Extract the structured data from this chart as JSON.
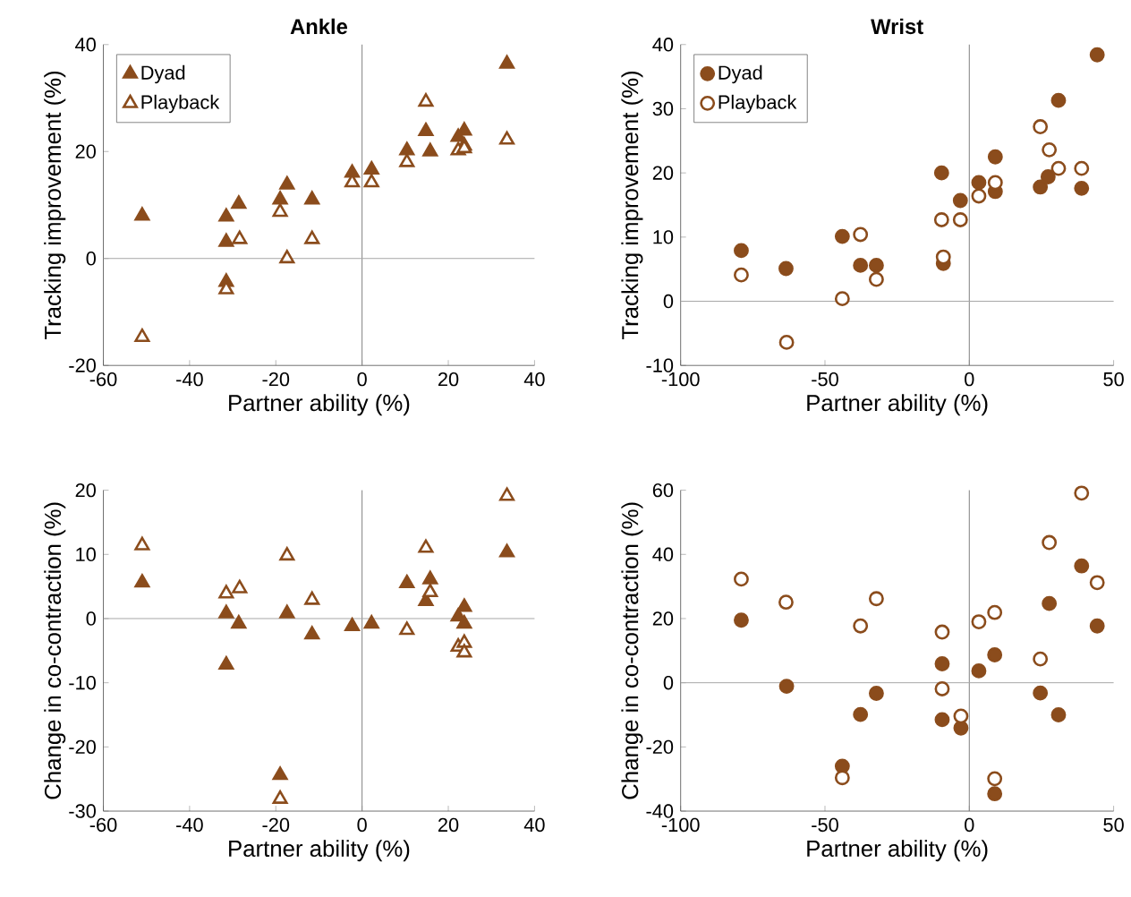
{
  "chart_data": [
    {
      "type": "scatter",
      "title": "Ankle",
      "xlabel": "Partner ability (%)",
      "ylabel": "Tracking improvement (%)",
      "xlim": [
        -60,
        40
      ],
      "ylim": [
        -20,
        40
      ],
      "xticks": [
        -60,
        -40,
        -20,
        0,
        20,
        40
      ],
      "yticks": [
        -20,
        0,
        20,
        40
      ],
      "legend": "top left",
      "marker": "triangle",
      "ref_lines": [
        {
          "axis": "x",
          "value": 0,
          "color": "#808080"
        },
        {
          "axis": "y",
          "value": 0,
          "color": "#a6a6a6"
        }
      ],
      "series": [
        {
          "name": "Dyad",
          "color": "#8b4c1c",
          "x": [
            -51,
            -31.5,
            -28.6,
            -31.5,
            -31.5,
            -19,
            -17.4,
            -11.6,
            -2.3,
            2.2,
            10.4,
            14.8,
            15.8,
            22.3,
            23.7,
            23.7,
            33.6
          ],
          "values": [
            8,
            7.8,
            10.2,
            3.1,
            -4.4,
            11,
            13.8,
            11,
            16,
            16.6,
            20.2,
            23.8,
            20,
            22.7,
            23.9,
            21.1,
            36.4
          ]
        },
        {
          "name": "Playback",
          "color": "#8b4c1c",
          "x": [
            -51,
            -31.5,
            -28.4,
            -19,
            -17.4,
            -11.6,
            -2.3,
            2.2,
            10.4,
            14.8,
            22.3,
            23.7,
            33.6
          ],
          "values": [
            -14.7,
            -5.8,
            3.6,
            8.7,
            0,
            3.6,
            14.2,
            14.2,
            18,
            29.3,
            20.2,
            20.6,
            22.2
          ]
        }
      ]
    },
    {
      "type": "scatter",
      "title": "Wrist",
      "xlabel": "Partner ability (%)",
      "ylabel": "Tracking improvement (%)",
      "xlim": [
        -100,
        50
      ],
      "ylim": [
        -10,
        40
      ],
      "xticks": [
        -100,
        -50,
        0,
        50
      ],
      "yticks": [
        -10,
        0,
        10,
        20,
        30,
        40
      ],
      "legend": "top left",
      "marker": "circle",
      "ref_lines": [
        {
          "axis": "x",
          "value": 0,
          "color": "#808080"
        },
        {
          "axis": "y",
          "value": 0,
          "color": "#a6a6a6"
        }
      ],
      "series": [
        {
          "name": "Dyad",
          "color": "#8b4c1c",
          "x": [
            -79,
            -63.5,
            -44,
            -37.7,
            -32.2,
            -9.6,
            -9,
            -3.1,
            3.3,
            9,
            9,
            24.6,
            27.3,
            30.9,
            38.9,
            44.3
          ],
          "values": [
            7.9,
            5.1,
            10.1,
            5.6,
            5.6,
            20,
            5.9,
            15.7,
            18.5,
            22.5,
            17.1,
            17.8,
            19.4,
            31.3,
            17.6,
            38.4
          ]
        },
        {
          "name": "Playback",
          "color": "#8b4c1c",
          "x": [
            -79,
            -63.3,
            -44,
            -37.7,
            -32.2,
            -9.6,
            -9,
            -3.1,
            3.3,
            9,
            24.6,
            27.7,
            30.9,
            38.9
          ],
          "values": [
            4.1,
            -6.4,
            0.4,
            10.4,
            3.4,
            12.7,
            6.9,
            12.7,
            16.4,
            18.5,
            27.2,
            23.6,
            20.7,
            20.7
          ]
        }
      ]
    },
    {
      "type": "scatter",
      "xlabel": "Partner ability (%)",
      "ylabel": "Change in co-contraction (%)",
      "xlim": [
        -60,
        40
      ],
      "ylim": [
        -30,
        20
      ],
      "xticks": [
        -60,
        -40,
        -20,
        0,
        20,
        40
      ],
      "yticks": [
        -30,
        -20,
        -10,
        0,
        10,
        20
      ],
      "marker": "triangle",
      "ref_lines": [
        {
          "axis": "x",
          "value": 0,
          "color": "#808080"
        },
        {
          "axis": "y",
          "value": 0,
          "color": "#a6a6a6"
        }
      ],
      "series": [
        {
          "color": "#8b4c1c",
          "x": [
            -51,
            -31.5,
            -31.5,
            -28.6,
            -19,
            -17.4,
            -11.6,
            -2.3,
            2.2,
            10.4,
            14.8,
            15.8,
            22.3,
            23.7,
            23.7,
            33.6
          ],
          "values": [
            5.6,
            0.8,
            -7.2,
            -0.8,
            -24.4,
            0.8,
            -2.5,
            -1.2,
            -0.8,
            5.5,
            2.7,
            6.1,
            0.3,
            1.8,
            -0.8,
            10.3
          ]
        },
        {
          "color": "#8b4c1c",
          "x": [
            -51,
            -31.5,
            -28.4,
            -17.4,
            -19,
            -11.6,
            10.4,
            14.8,
            15.8,
            22.3,
            23.7,
            23.7,
            33.6
          ],
          "values": [
            11.4,
            3.9,
            4.7,
            9.8,
            -28.1,
            2.9,
            -1.8,
            11,
            4.1,
            -4.4,
            -3.8,
            -5.3,
            19.1
          ]
        }
      ]
    },
    {
      "type": "scatter",
      "xlabel": "Partner ability (%)",
      "ylabel": "Change in co-contraction (%)",
      "xlim": [
        -100,
        50
      ],
      "ylim": [
        -40,
        60
      ],
      "xticks": [
        -100,
        -50,
        0,
        50
      ],
      "yticks": [
        -40,
        -20,
        0,
        20,
        40,
        60
      ],
      "marker": "circle",
      "ref_lines": [
        {
          "axis": "x",
          "value": 0,
          "color": "#808080"
        },
        {
          "axis": "y",
          "value": 0,
          "color": "#a6a6a6"
        }
      ],
      "series": [
        {
          "color": "#8b4c1c",
          "x": [
            -79,
            -63.3,
            -44,
            -37.7,
            -32.2,
            -9.4,
            -9.4,
            -2.9,
            3.3,
            8.8,
            8.8,
            24.6,
            27.7,
            30.9,
            38.9,
            44.3
          ],
          "values": [
            19.5,
            -1.1,
            -26,
            -9.9,
            -3.3,
            5.9,
            -11.5,
            -14.1,
            3.7,
            8.7,
            -34.6,
            -3.2,
            24.7,
            -10,
            36.4,
            17.7
          ]
        },
        {
          "color": "#8b4c1c",
          "x": [
            -79,
            -63.5,
            -44,
            -37.7,
            -32.2,
            -9.4,
            -9.4,
            -2.9,
            3.3,
            8.8,
            8.8,
            24.6,
            27.7,
            38.9,
            44.3
          ],
          "values": [
            32.3,
            25.1,
            -29.6,
            17.7,
            26.2,
            15.8,
            -1.9,
            -10.4,
            19,
            21.9,
            -29.9,
            7.4,
            43.7,
            59.1,
            31.2
          ]
        }
      ]
    }
  ]
}
